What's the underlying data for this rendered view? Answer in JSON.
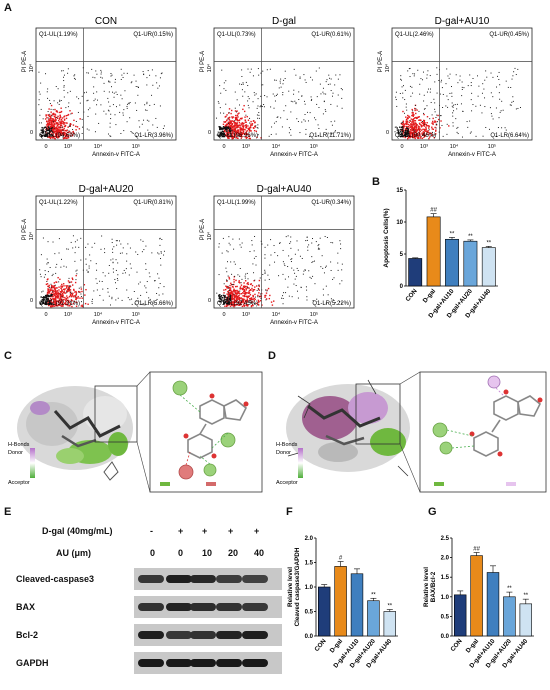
{
  "panels": {
    "A": "A",
    "B": "B",
    "C": "C",
    "D": "D",
    "E": "E",
    "F": "F",
    "G": "G"
  },
  "flow": {
    "axis_x": "Annexin-v FITC-A",
    "axis_y": "PI PE-A",
    "tick_y": [
      "10⁴",
      "0"
    ],
    "tick_x": [
      "0",
      "10³",
      "10⁴",
      "10⁵"
    ],
    "plots": [
      {
        "title": "CON",
        "ul": "Q1-UL(1.19%)",
        "ur": "Q1-UR(0.15%)",
        "ll": "Q1-LL(94.69%)",
        "lr": "Q1-LR(3.96%)"
      },
      {
        "title": "D-gal",
        "ul": "Q1-UL(0.73%)",
        "ur": "Q1-UR(0.61%)",
        "ll": "Q1-LL(86.96%)",
        "lr": "Q1-LR(11.71%)"
      },
      {
        "title": "D-gal+AU10",
        "ul": "Q1-UL(2.46%)",
        "ur": "Q1-UR(0.45%)",
        "ll": "Q1-LL(90.46%)",
        "lr": "Q1-LR(6.64%)"
      },
      {
        "title": "D-gal+AU20",
        "ul": "Q1-UL(1.22%)",
        "ur": "Q1-UR(0.81%)",
        "ll": "Q1-LL(92.31%)",
        "lr": "Q1-LR(5.66%)"
      },
      {
        "title": "D-gal+AU40",
        "ul": "Q1-UL(1.99%)",
        "ur": "Q1-UR(0.34%)",
        "ll": "Q1-LL(92.45%)",
        "lr": "Q1-LR(5.22%)"
      }
    ]
  },
  "docking": {
    "legend_title": "H-Bonds",
    "donor": "Donor",
    "acceptor": "Acceptor"
  },
  "blot": {
    "row1_label": "D-gal (40mg/mL)",
    "row1_values": [
      "-",
      "+",
      "+",
      "+",
      "+"
    ],
    "row2_label": "AU (μm)",
    "row2_values": [
      "0",
      "0",
      "10",
      "20",
      "40"
    ],
    "bands": [
      "Cleaved-caspase3",
      "BAX",
      "Bcl-2",
      "GAPDH"
    ]
  },
  "chart_data": [
    {
      "type": "bar",
      "panel": "B",
      "categories": [
        "CON",
        "D-gal",
        "D-gal+AU10",
        "D-gal+AU20",
        "D-gal+AU40"
      ],
      "values": [
        4.3,
        10.8,
        7.3,
        7.0,
        6.0
      ],
      "errors": [
        0.1,
        0.5,
        0.3,
        0.2,
        0.2
      ],
      "colors": [
        "#1f3d7a",
        "#e88a1a",
        "#3f7fbf",
        "#6aa6da",
        "#cfe3f2"
      ],
      "significance": [
        "",
        "##",
        "**",
        "**",
        "**"
      ],
      "ylabel": "Apoptosis Cells(%)",
      "ylim": [
        0,
        15
      ],
      "yticks": [
        "0",
        "5",
        "10",
        "15"
      ]
    },
    {
      "type": "bar",
      "panel": "F",
      "categories": [
        "CON",
        "D-gal",
        "D-gal+AU10",
        "D-gal+AU20",
        "D-gal+AU40"
      ],
      "values": [
        1.0,
        1.42,
        1.27,
        0.72,
        0.5
      ],
      "errors": [
        0.05,
        0.1,
        0.1,
        0.05,
        0.04
      ],
      "colors": [
        "#1f3d7a",
        "#e88a1a",
        "#3f7fbf",
        "#6aa6da",
        "#cfe3f2"
      ],
      "significance": [
        "",
        "#",
        "",
        "**",
        "**"
      ],
      "ylabel_line1": "Relative level",
      "ylabel_line2": "Cleaved caspase3/GAPDH",
      "ylim": [
        0,
        2.0
      ],
      "yticks": [
        "0.0",
        "0.5",
        "1.0",
        "1.5",
        "2.0"
      ]
    },
    {
      "type": "bar",
      "panel": "G",
      "categories": [
        "CON",
        "D-gal",
        "D-gal+AU10",
        "D-gal+AU20",
        "D-gal+AU40"
      ],
      "values": [
        1.05,
        2.05,
        1.62,
        1.0,
        0.82
      ],
      "errors": [
        0.1,
        0.08,
        0.17,
        0.12,
        0.12
      ],
      "colors": [
        "#1f3d7a",
        "#e88a1a",
        "#3f7fbf",
        "#6aa6da",
        "#cfe3f2"
      ],
      "significance": [
        "",
        "##",
        "",
        "**",
        "**"
      ],
      "ylabel_line1": "Relative level",
      "ylabel_line2": "BAX/Bcl-2",
      "ylim": [
        0,
        2.5
      ],
      "yticks": [
        "0.0",
        "0.5",
        "1.0",
        "1.5",
        "2.0",
        "2.5"
      ]
    }
  ]
}
